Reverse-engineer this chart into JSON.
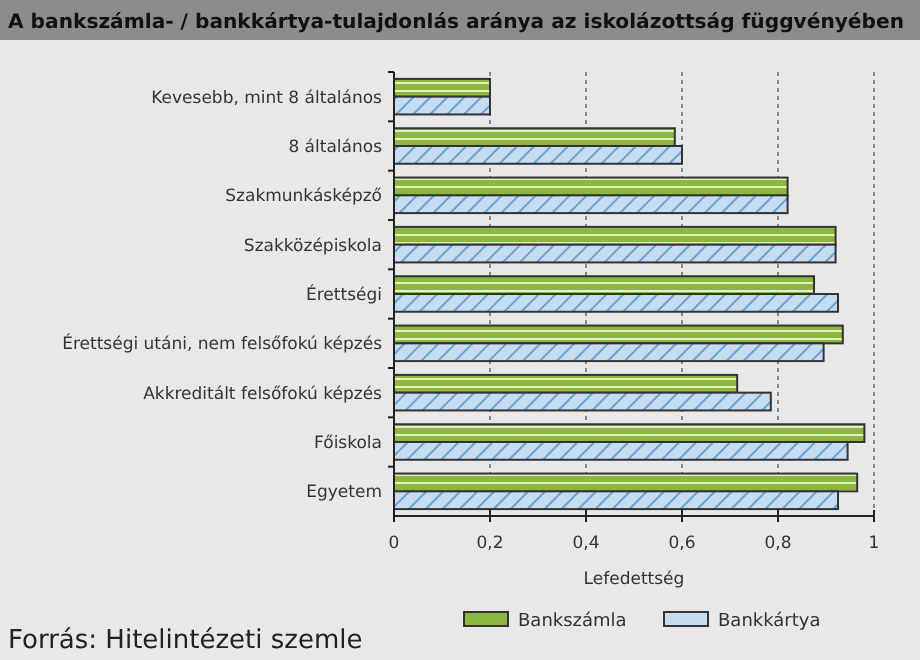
{
  "chart_data": {
    "type": "bar",
    "orientation": "horizontal",
    "title": "A bankszámla- / bankkártya-tulajdonlás aránya az iskolázottság függvényében",
    "xlabel": "Lefedettség",
    "categories": [
      "Kevesebb, mint 8 általános",
      "8 általános",
      "Szakmunkásképző",
      "Szakközépiskola",
      "Érettségi",
      "Érettségi utáni, nem felsőfokú képzés",
      "Akkreditált felsőfokú képzés",
      "Főiskola",
      "Egyetem"
    ],
    "series": [
      {
        "name": "Bankszámla",
        "color": "#8db73e",
        "values": [
          0.2,
          0.585,
          0.82,
          0.92,
          0.875,
          0.935,
          0.715,
          0.98,
          0.965
        ]
      },
      {
        "name": "Bankkártya",
        "color": "#c6dcf0",
        "values": [
          0.2,
          0.6,
          0.82,
          0.92,
          0.925,
          0.895,
          0.785,
          0.945,
          0.925
        ]
      }
    ],
    "xlim": [
      0,
      1
    ],
    "xticks": [
      0,
      {
        "value": 0.2,
        "label": "0,2"
      },
      {
        "value": 0.4,
        "label": "0,4"
      },
      {
        "value": 0.6,
        "label": "0,6"
      },
      {
        "value": 0.8,
        "label": "0,8"
      },
      1
    ],
    "grid": "x",
    "legend": "bottom",
    "annotations": [
      "Forrás: Hitelintézeti szemle"
    ]
  }
}
